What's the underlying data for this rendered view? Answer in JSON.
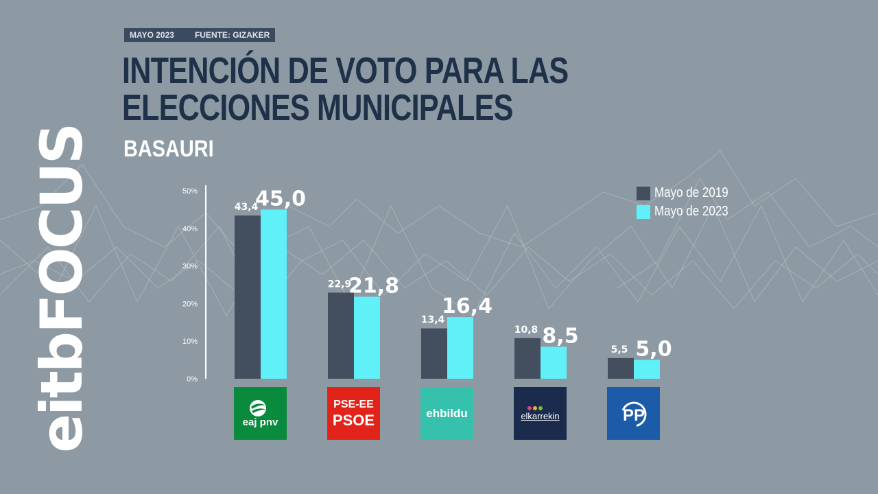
{
  "header": {
    "date": "MAYO 2023",
    "source": "FUENTE: GIZAKER",
    "title": "INTENCIÓN DE VOTO PARA LAS ELECCIONES MUNICIPALES",
    "subtitle": "BASAURI"
  },
  "brand": {
    "name": "eitbFOCUS"
  },
  "logos": {
    "pnv": "eaj pnv",
    "psoe": [
      "PSE-EE",
      "PSOE"
    ],
    "bildu": "ehbildu",
    "elkarrekin": "elkarrekin",
    "pp": "PP"
  },
  "colors": {
    "background": "#8d9aa3",
    "series_2019": "#434e5f",
    "series_2023": "#5ff0f8",
    "title": "#1e3148"
  },
  "chart_data": {
    "type": "bar",
    "categories": [
      "EAJ-PNV",
      "PSE-EE PSOE",
      "EH Bildu",
      "Elkarrekin",
      "PP"
    ],
    "series": [
      {
        "name": "Mayo de 2019",
        "values": [
          43.4,
          22.9,
          13.4,
          10.8,
          5.5
        ],
        "labels": [
          "43,4",
          "22,9",
          "13,4",
          "10,8",
          "5,5"
        ]
      },
      {
        "name": "Mayo de 2023",
        "values": [
          45.0,
          21.8,
          16.4,
          8.5,
          5.0
        ],
        "labels": [
          "45,0",
          "21,8",
          "16,4",
          "8,5",
          "5,0"
        ]
      }
    ],
    "y_ticks": [
      "0%",
      "10%",
      "20%",
      "30%",
      "40%",
      "50%"
    ],
    "ylim": [
      0,
      50
    ],
    "legend_position": "top-right",
    "grid": false
  }
}
